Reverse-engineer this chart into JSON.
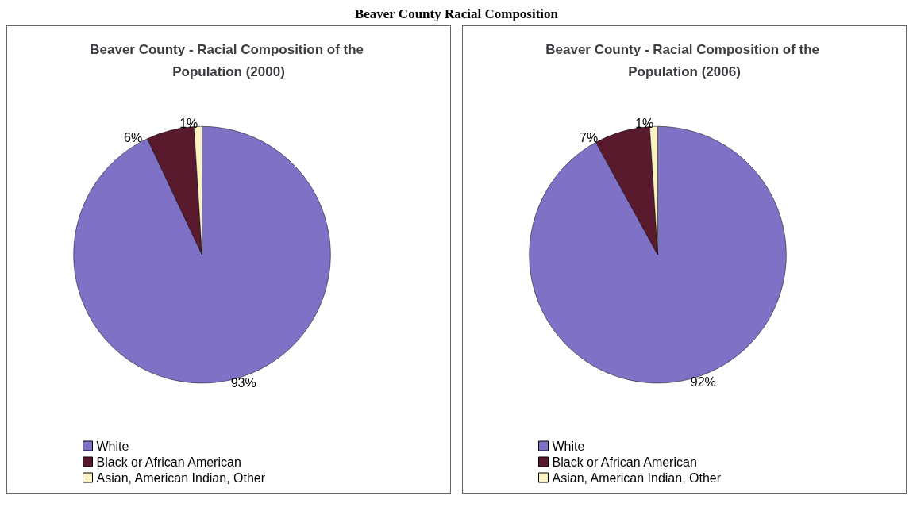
{
  "chart_data": [
    {
      "type": "pie",
      "title": "Beaver County - Racial Composition of the Population (2000)",
      "annotations": [
        "Beaver County Racial Composition"
      ],
      "categories": [
        "White",
        "Black or African American",
        "Asian, American Indian, Other"
      ],
      "values": [
        93,
        6,
        1
      ],
      "value_labels": [
        "93%",
        "6%",
        "1%"
      ],
      "colors": [
        "#7f72c6",
        "#5a1a2e",
        "#fbf3c4"
      ],
      "legend": "bottom left"
    },
    {
      "type": "pie",
      "title": "Beaver County - Racial Composition of the Population (2006)",
      "categories": [
        "White",
        "Black or African American",
        "Asian, American Indian, Other"
      ],
      "values": [
        92,
        7,
        1
      ],
      "value_labels": [
        "92%",
        "7%",
        "1%"
      ],
      "colors": [
        "#7f72c6",
        "#5a1a2e",
        "#fbf3c4"
      ],
      "legend": "bottom left"
    }
  ]
}
